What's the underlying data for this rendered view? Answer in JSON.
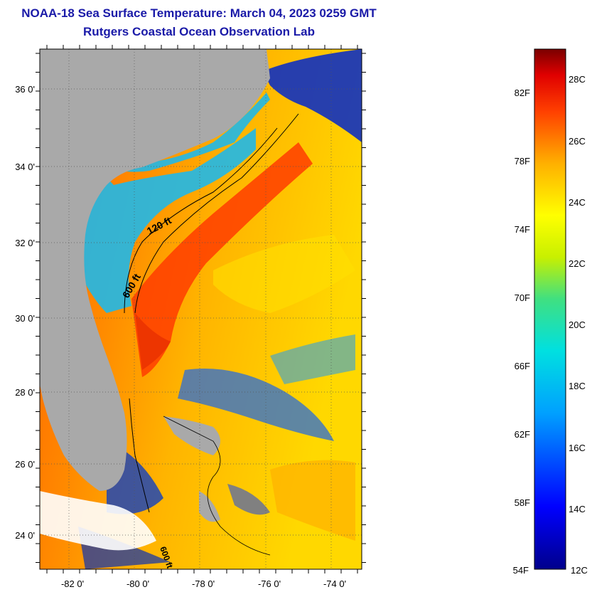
{
  "header": {
    "title": "NOAA-18 Sea Surface Temperature:  March 04, 2023 0259 GMT",
    "subtitle": "Rutgers Coastal Ocean Observation Lab"
  },
  "map": {
    "lat_labels": [
      "36 0'",
      "34 0'",
      "32 0'",
      "30 0'",
      "28 0'",
      "26 0'",
      "24 0'"
    ],
    "lon_labels": [
      "-82 0'",
      "-80 0'",
      "-78 0'",
      "-76 0'",
      "-74 0'"
    ],
    "contour_labels": [
      "120 ft",
      "600 ft",
      "600 ft"
    ],
    "land_color": "#a9a9a9"
  },
  "colorbar": {
    "fahrenheit_labels": [
      "82F",
      "78F",
      "74F",
      "70F",
      "66F",
      "62F",
      "58F",
      "54F"
    ],
    "celsius_labels": [
      "28C",
      "26C",
      "24C",
      "22C",
      "20C",
      "18C",
      "16C",
      "14C",
      "12C"
    ],
    "range_c": [
      12,
      29
    ]
  }
}
